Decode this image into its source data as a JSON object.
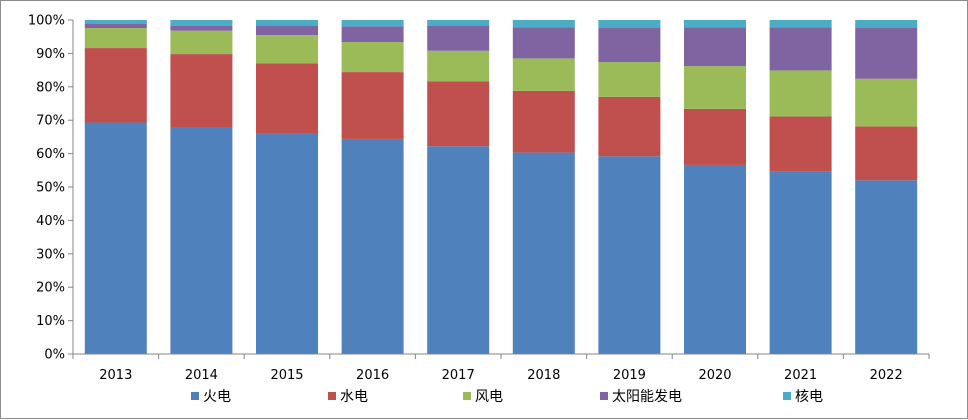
{
  "chart_data": {
    "type": "bar",
    "stacked": true,
    "percent_stacked": true,
    "categories": [
      "2013",
      "2014",
      "2015",
      "2016",
      "2017",
      "2018",
      "2019",
      "2020",
      "2021",
      "2022"
    ],
    "series": [
      {
        "name": "火电",
        "color": "#4F81BD",
        "values": [
          69.3,
          67.8,
          66.0,
          64.4,
          62.2,
          60.3,
          59.2,
          56.6,
          54.6,
          52.0
        ]
      },
      {
        "name": "水电",
        "color": "#C0504D",
        "values": [
          22.3,
          22.0,
          21.0,
          20.0,
          19.4,
          18.5,
          17.8,
          16.8,
          16.5,
          16.1
        ]
      },
      {
        "name": "风电",
        "color": "#9BBB59",
        "values": [
          6.0,
          7.0,
          8.5,
          9.0,
          9.2,
          9.7,
          10.4,
          12.8,
          13.8,
          14.3
        ]
      },
      {
        "name": "太阳能发电",
        "color": "#8064A2",
        "values": [
          1.2,
          1.5,
          2.7,
          4.7,
          7.4,
          9.3,
          10.2,
          11.6,
          12.9,
          15.2
        ]
      },
      {
        "name": "核电",
        "color": "#4BACC6",
        "values": [
          1.2,
          1.7,
          1.8,
          1.9,
          1.8,
          2.2,
          2.4,
          2.2,
          2.2,
          2.4
        ]
      }
    ],
    "y_ticks": [
      "0%",
      "10%",
      "20%",
      "30%",
      "40%",
      "50%",
      "60%",
      "70%",
      "80%",
      "90%",
      "100%"
    ],
    "ylim": [
      0,
      100
    ],
    "grid": false,
    "legend_position": "bottom"
  }
}
